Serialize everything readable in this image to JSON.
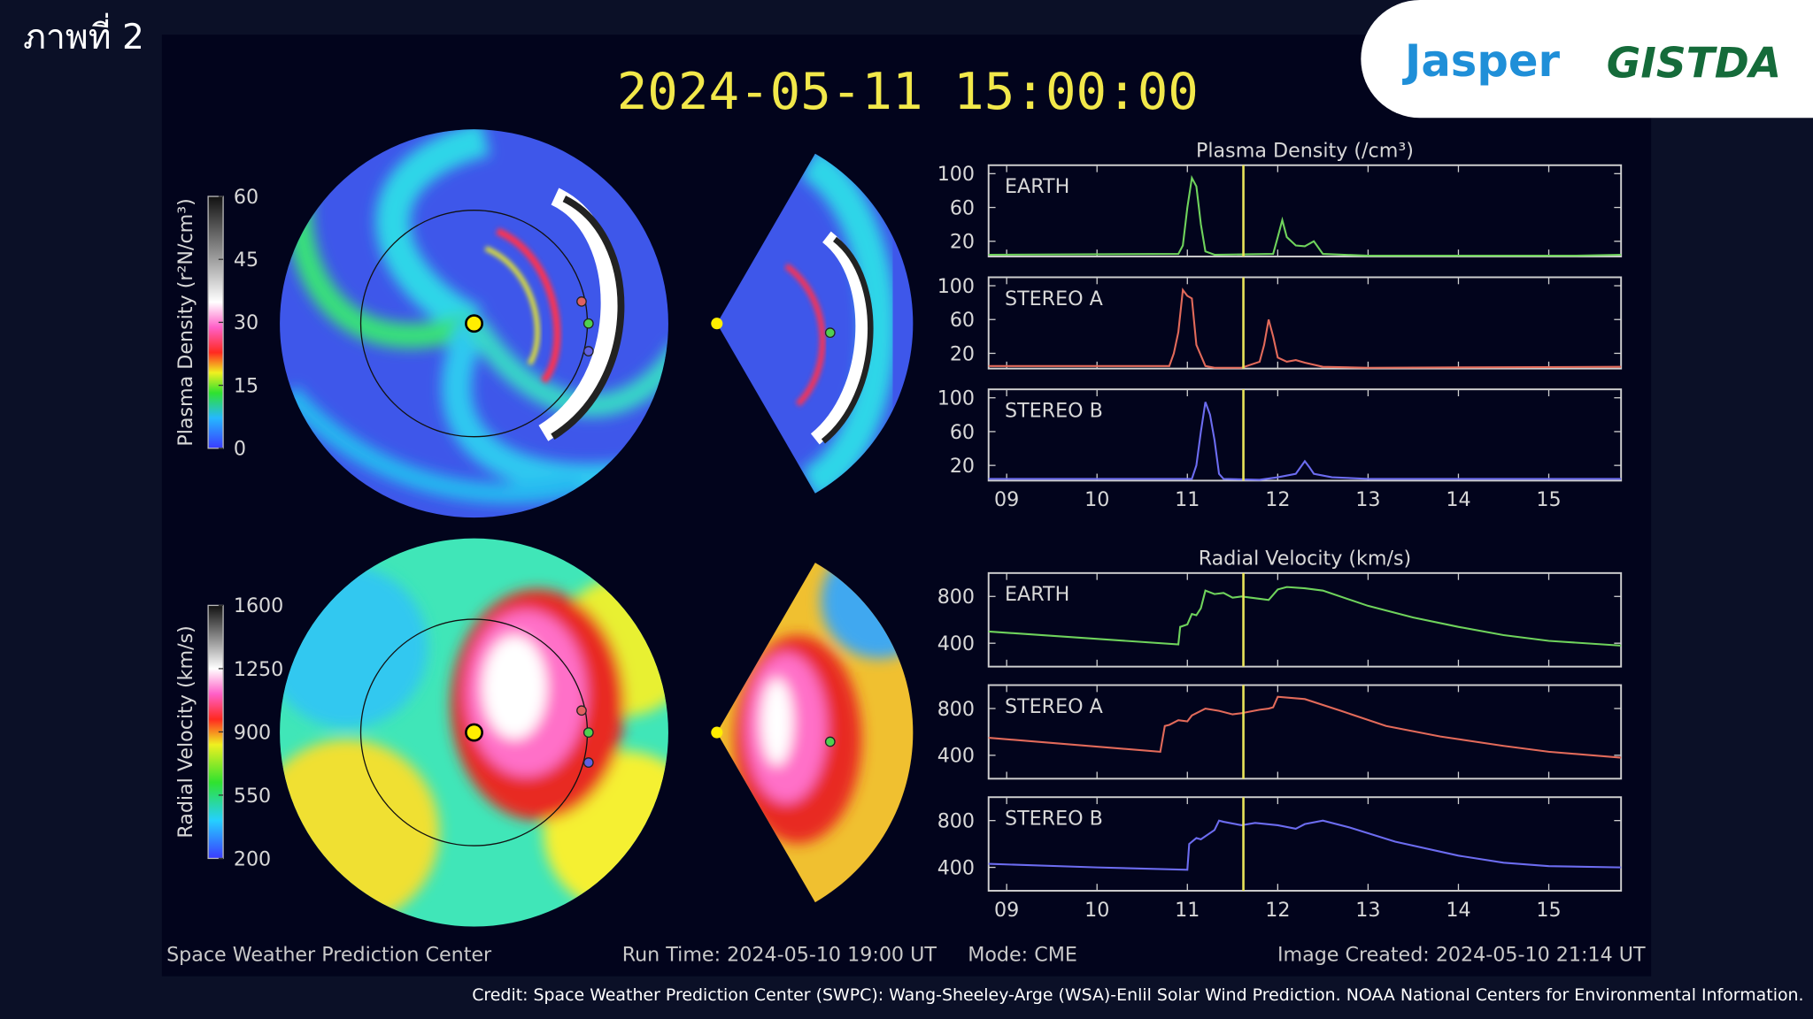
{
  "page": {
    "figure_label": "ภาพที่ 2",
    "logo_left": "Jasper",
    "logo_right": "GISTDA",
    "timestamp": "2024-05-11 15:00:00",
    "footer_left": "Space Weather Prediction Center",
    "run_time": "Run Time: 2024-05-10 19:00 UT",
    "mode": "Mode: CME",
    "image_created": "Image Created: 2024-05-10 21:14 UT",
    "credit": "Credit: Space Weather Prediction Center (SWPC): Wang-Sheeley-Arge (WSA)-Enlil Solar Wind Prediction. NOAA National Centers for Environmental Information."
  },
  "colorbars": [
    {
      "label": "Plasma Density (r²N/cm³)",
      "lim": [
        0,
        60
      ],
      "ticks": [
        0,
        15,
        30,
        45,
        60
      ]
    },
    {
      "label": "Radial Velocity (km/s)",
      "lim": [
        200,
        1600
      ],
      "ticks": [
        200,
        550,
        900,
        1250,
        1600
      ]
    }
  ],
  "chart_data": [
    {
      "type": "line",
      "title": "Plasma Density (/cm³)",
      "annotation": "EARTH",
      "color": "#6fd35c",
      "marker_x": 11.62,
      "x": [
        8.8,
        10.9,
        10.95,
        11.0,
        11.05,
        11.1,
        11.15,
        11.2,
        11.3,
        11.95,
        12.0,
        12.05,
        12.1,
        12.2,
        12.3,
        12.4,
        12.5,
        13.0,
        15.3,
        15.8
      ],
      "values": [
        4,
        5,
        15,
        60,
        95,
        85,
        40,
        8,
        4,
        5,
        25,
        45,
        25,
        15,
        14,
        20,
        5,
        3,
        3,
        4
      ],
      "xlim": [
        8.8,
        15.8
      ],
      "xticks": [
        9,
        10,
        11,
        12,
        13,
        14,
        15
      ],
      "ylim": [
        2,
        110
      ],
      "yticks": [
        20,
        60,
        100
      ]
    },
    {
      "type": "line",
      "annotation": "STEREO A",
      "color": "#e26a5a",
      "marker_x": 11.62,
      "x": [
        8.8,
        10.8,
        10.85,
        10.9,
        10.95,
        11.0,
        11.05,
        11.1,
        11.2,
        11.3,
        11.6,
        11.8,
        11.85,
        11.9,
        11.95,
        12.0,
        12.1,
        12.2,
        12.3,
        12.5,
        13.0,
        15.8
      ],
      "values": [
        5,
        5,
        20,
        45,
        95,
        88,
        85,
        30,
        5,
        3,
        3,
        10,
        30,
        60,
        40,
        15,
        10,
        12,
        9,
        4,
        3,
        4
      ],
      "xlim": [
        8.8,
        15.8
      ],
      "xticks": [
        9,
        10,
        11,
        12,
        13,
        14,
        15
      ],
      "ylim": [
        2,
        110
      ],
      "yticks": [
        20,
        60,
        100
      ]
    },
    {
      "type": "line",
      "annotation": "STEREO B",
      "color": "#6c6cf0",
      "marker_x": 11.62,
      "x": [
        8.8,
        11.05,
        11.1,
        11.15,
        11.2,
        11.25,
        11.3,
        11.35,
        11.4,
        11.8,
        12.0,
        12.2,
        12.3,
        12.35,
        12.4,
        12.6,
        13.0,
        15.8
      ],
      "values": [
        4,
        4,
        20,
        60,
        95,
        80,
        50,
        10,
        4,
        3,
        6,
        10,
        25,
        18,
        10,
        6,
        4,
        4
      ],
      "xlim": [
        8.8,
        15.8
      ],
      "xticks": [
        {
          "value": 9,
          "label": "09"
        },
        10,
        11,
        12,
        13,
        14,
        15
      ],
      "ylim": [
        2,
        110
      ],
      "yticks": [
        20,
        60,
        100
      ]
    },
    {
      "type": "line",
      "title": "Radial Velocity (km/s)",
      "annotation": "EARTH",
      "color": "#6fd35c",
      "marker_x": 11.62,
      "x": [
        8.8,
        10.9,
        10.92,
        11.0,
        11.05,
        11.1,
        11.15,
        11.2,
        11.3,
        11.4,
        11.5,
        11.6,
        11.8,
        11.9,
        12.0,
        12.1,
        12.3,
        12.5,
        13.0,
        13.5,
        14.0,
        14.5,
        15.0,
        15.8
      ],
      "values": [
        500,
        390,
        540,
        560,
        650,
        640,
        700,
        850,
        820,
        830,
        790,
        800,
        780,
        770,
        860,
        880,
        870,
        850,
        720,
        620,
        540,
        470,
        420,
        380
      ],
      "xlim": [
        8.8,
        15.8
      ],
      "xticks": [
        9,
        10,
        11,
        12,
        13,
        14,
        15
      ],
      "ylim": [
        200,
        1000
      ],
      "yticks": [
        400,
        800
      ]
    },
    {
      "type": "line",
      "annotation": "STEREO A",
      "color": "#e26a5a",
      "marker_x": 11.62,
      "x": [
        8.8,
        10.7,
        10.75,
        10.8,
        10.9,
        11.0,
        11.05,
        11.2,
        11.35,
        11.5,
        11.6,
        11.8,
        11.9,
        11.95,
        12.0,
        12.3,
        12.7,
        13.2,
        13.8,
        14.5,
        15.0,
        15.8
      ],
      "values": [
        550,
        430,
        650,
        660,
        700,
        690,
        740,
        800,
        780,
        750,
        760,
        790,
        800,
        810,
        900,
        880,
        780,
        650,
        560,
        480,
        430,
        380
      ],
      "xlim": [
        8.8,
        15.8
      ],
      "xticks": [
        9,
        10,
        11,
        12,
        13,
        14,
        15
      ],
      "ylim": [
        200,
        1000
      ],
      "yticks": [
        400,
        800
      ]
    },
    {
      "type": "line",
      "annotation": "STEREO B",
      "color": "#6c6cf0",
      "marker_x": 11.62,
      "x": [
        8.8,
        10.0,
        11.0,
        11.02,
        11.1,
        11.15,
        11.3,
        11.35,
        11.4,
        11.6,
        11.75,
        12.0,
        12.2,
        12.3,
        12.5,
        12.8,
        13.3,
        14.0,
        14.5,
        15.0,
        15.8
      ],
      "values": [
        430,
        400,
        380,
        600,
        650,
        640,
        720,
        800,
        790,
        760,
        780,
        760,
        730,
        770,
        800,
        740,
        620,
        500,
        440,
        410,
        400
      ],
      "xlim": [
        8.8,
        15.8
      ],
      "xticks": [
        {
          "value": 9,
          "label": "09"
        },
        10,
        11,
        12,
        13,
        14,
        15
      ],
      "ylim": [
        200,
        1000
      ],
      "yticks": [
        400,
        800
      ]
    }
  ]
}
